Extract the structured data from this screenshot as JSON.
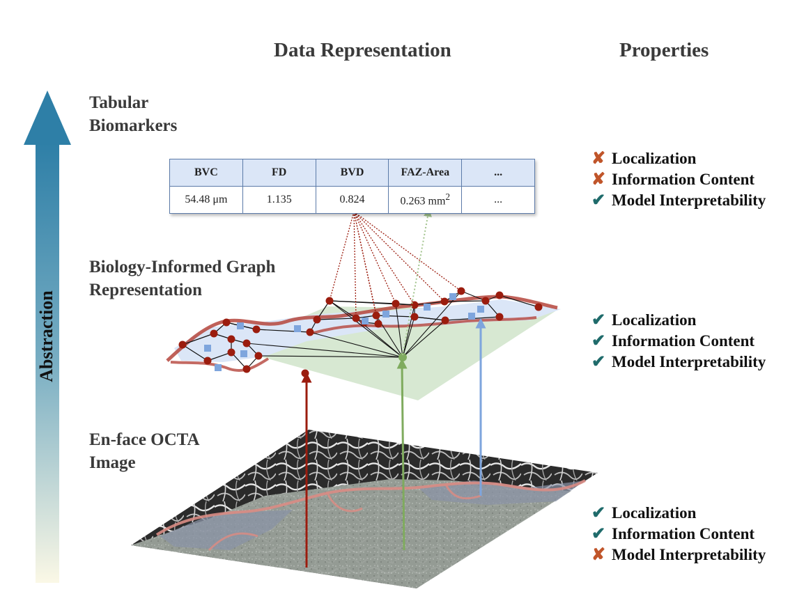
{
  "headers": {
    "data_representation": "Data Representation",
    "properties": "Properties"
  },
  "axis": {
    "label": "Abstraction"
  },
  "levels": {
    "tabular": {
      "line1": "Tabular",
      "line2": "Biomarkers"
    },
    "graph": {
      "line1": "Biology-Informed Graph",
      "line2": "Representation"
    },
    "image": {
      "line1": "En-face OCTA",
      "line2": "Image"
    }
  },
  "table": {
    "headers": [
      "BVC",
      "FD",
      "BVD",
      "FAZ-Area",
      "..."
    ],
    "values": [
      "54.48 μm",
      "1.135",
      "0.824",
      "0.263 mm",
      "..."
    ],
    "faz_unit_sup": "2"
  },
  "properties": {
    "tabular": [
      {
        "label": "Localization",
        "status": "x",
        "symbol": "✘"
      },
      {
        "label": "Information Content",
        "status": "x",
        "symbol": "✘"
      },
      {
        "label": "Model Interpretability",
        "status": "check",
        "symbol": "✔"
      }
    ],
    "graph": [
      {
        "label": "Localization",
        "status": "check",
        "symbol": "✔"
      },
      {
        "label": "Information Content",
        "status": "check",
        "symbol": "✔"
      },
      {
        "label": "Model Interpretability",
        "status": "check",
        "symbol": "✔"
      }
    ],
    "image": [
      {
        "label": "Localization",
        "status": "check",
        "symbol": "✔"
      },
      {
        "label": "Information Content",
        "status": "check",
        "symbol": "✔"
      },
      {
        "label": "Model Interpretability",
        "status": "x",
        "symbol": "✘"
      }
    ]
  },
  "colors": {
    "arrow_top": "#2e7fa7",
    "arrow_bottom": "#fbf8e6",
    "vessel_node": "#9b1c0e",
    "icp_node": "#7ea5dd",
    "faz_node": "#7fab5e",
    "faz_region": "#d7e8d2",
    "icp_region": "#dbe6f7",
    "check": "#1f6b6b",
    "cross": "#c0552a"
  }
}
